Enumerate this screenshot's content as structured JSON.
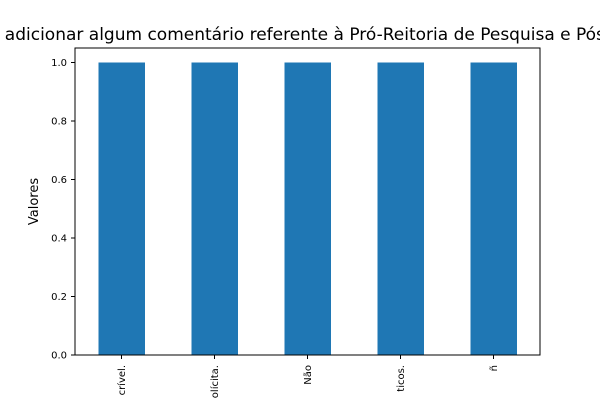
{
  "chart_data": {
    "type": "bar",
    "title": "e adicionar algum comentário referente à Pró-Reitoria de Pesquisa e Pós-",
    "xlabel": "",
    "ylabel": "Valores",
    "categories": [
      "crível.",
      "olícita.",
      "Não",
      "ticos.",
      "ñ"
    ],
    "values": [
      1.0,
      1.0,
      1.0,
      1.0,
      1.0
    ],
    "ylim": [
      0,
      1.05
    ],
    "yticks": [
      "0.0",
      "0.2",
      "0.4",
      "0.6",
      "0.8",
      "1.0"
    ],
    "bar_color": "#1f77b4",
    "grid": false,
    "legend": "none"
  }
}
